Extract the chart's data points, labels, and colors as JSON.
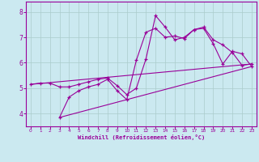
{
  "bg_color": "#cbe9f0",
  "line_color": "#990099",
  "grid_color": "#aacccc",
  "xlabel": "Windchill (Refroidissement éolien,°C)",
  "xlim": [
    -0.5,
    23.5
  ],
  "ylim": [
    3.5,
    8.4
  ],
  "yticks": [
    4,
    5,
    6,
    7,
    8
  ],
  "xticks": [
    0,
    1,
    2,
    3,
    4,
    5,
    6,
    7,
    8,
    9,
    10,
    11,
    12,
    13,
    14,
    15,
    16,
    17,
    18,
    19,
    20,
    21,
    22,
    23
  ],
  "series1_x": [
    0,
    1,
    2,
    3,
    4,
    5,
    6,
    7,
    8,
    9,
    10,
    11,
    12,
    13,
    14,
    15,
    16,
    17,
    18,
    19,
    20,
    21,
    22,
    23
  ],
  "series1_y": [
    5.15,
    5.2,
    5.2,
    5.05,
    5.05,
    5.15,
    5.25,
    5.35,
    5.4,
    5.1,
    4.75,
    5.0,
    6.15,
    7.85,
    7.4,
    6.9,
    7.0,
    7.3,
    7.4,
    6.9,
    6.7,
    6.4,
    5.9,
    5.95
  ],
  "series2_x": [
    3,
    4,
    5,
    6,
    7,
    8,
    9,
    10,
    11,
    12,
    13,
    14,
    15,
    16,
    17,
    18,
    19,
    20,
    21,
    22,
    23
  ],
  "series2_y": [
    3.85,
    4.65,
    4.9,
    5.05,
    5.15,
    5.35,
    4.9,
    4.55,
    6.1,
    7.2,
    7.35,
    7.0,
    7.05,
    6.95,
    7.3,
    7.35,
    6.75,
    5.95,
    6.45,
    6.35,
    5.85
  ],
  "line1_x": [
    0,
    23
  ],
  "line1_y": [
    5.15,
    5.95
  ],
  "line2_x": [
    3,
    23
  ],
  "line2_y": [
    3.85,
    5.85
  ]
}
